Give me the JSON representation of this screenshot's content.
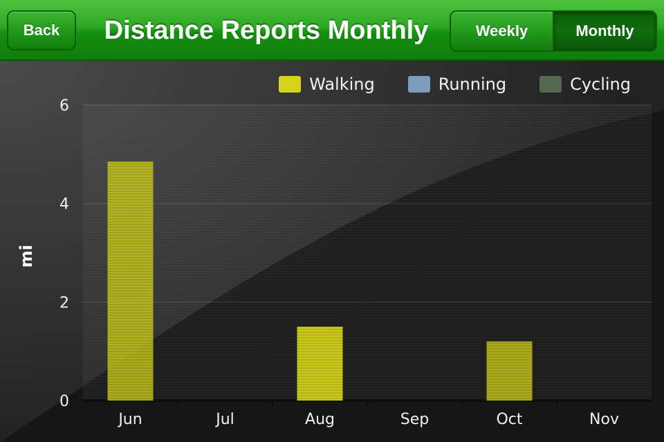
{
  "navbar": {
    "title": "Distance Reports Monthly",
    "back_label": "Back",
    "segments": [
      {
        "label": "Weekly",
        "selected": false
      },
      {
        "label": "Monthly",
        "selected": true
      }
    ],
    "color": "#22a31b"
  },
  "chart_data": {
    "type": "bar",
    "categories": [
      "Jun",
      "Jul",
      "Aug",
      "Sep",
      "Oct",
      "Nov"
    ],
    "series": [
      {
        "name": "Walking",
        "color": "#d4d41c",
        "values": [
          4.85,
          0,
          1.5,
          0,
          1.2,
          0
        ]
      },
      {
        "name": "Running",
        "color": "#7b9cbd",
        "values": [
          0,
          0,
          0,
          0,
          0,
          0
        ]
      },
      {
        "name": "Cycling",
        "color": "#56684f",
        "values": [
          0,
          0,
          0,
          0,
          0,
          0
        ]
      }
    ],
    "xlabel": "",
    "ylabel": "mi",
    "ylim": [
      0,
      6
    ],
    "yticks": [
      "0",
      "2",
      "4",
      "6"
    ],
    "grid": true,
    "legend_position": "top-right"
  }
}
